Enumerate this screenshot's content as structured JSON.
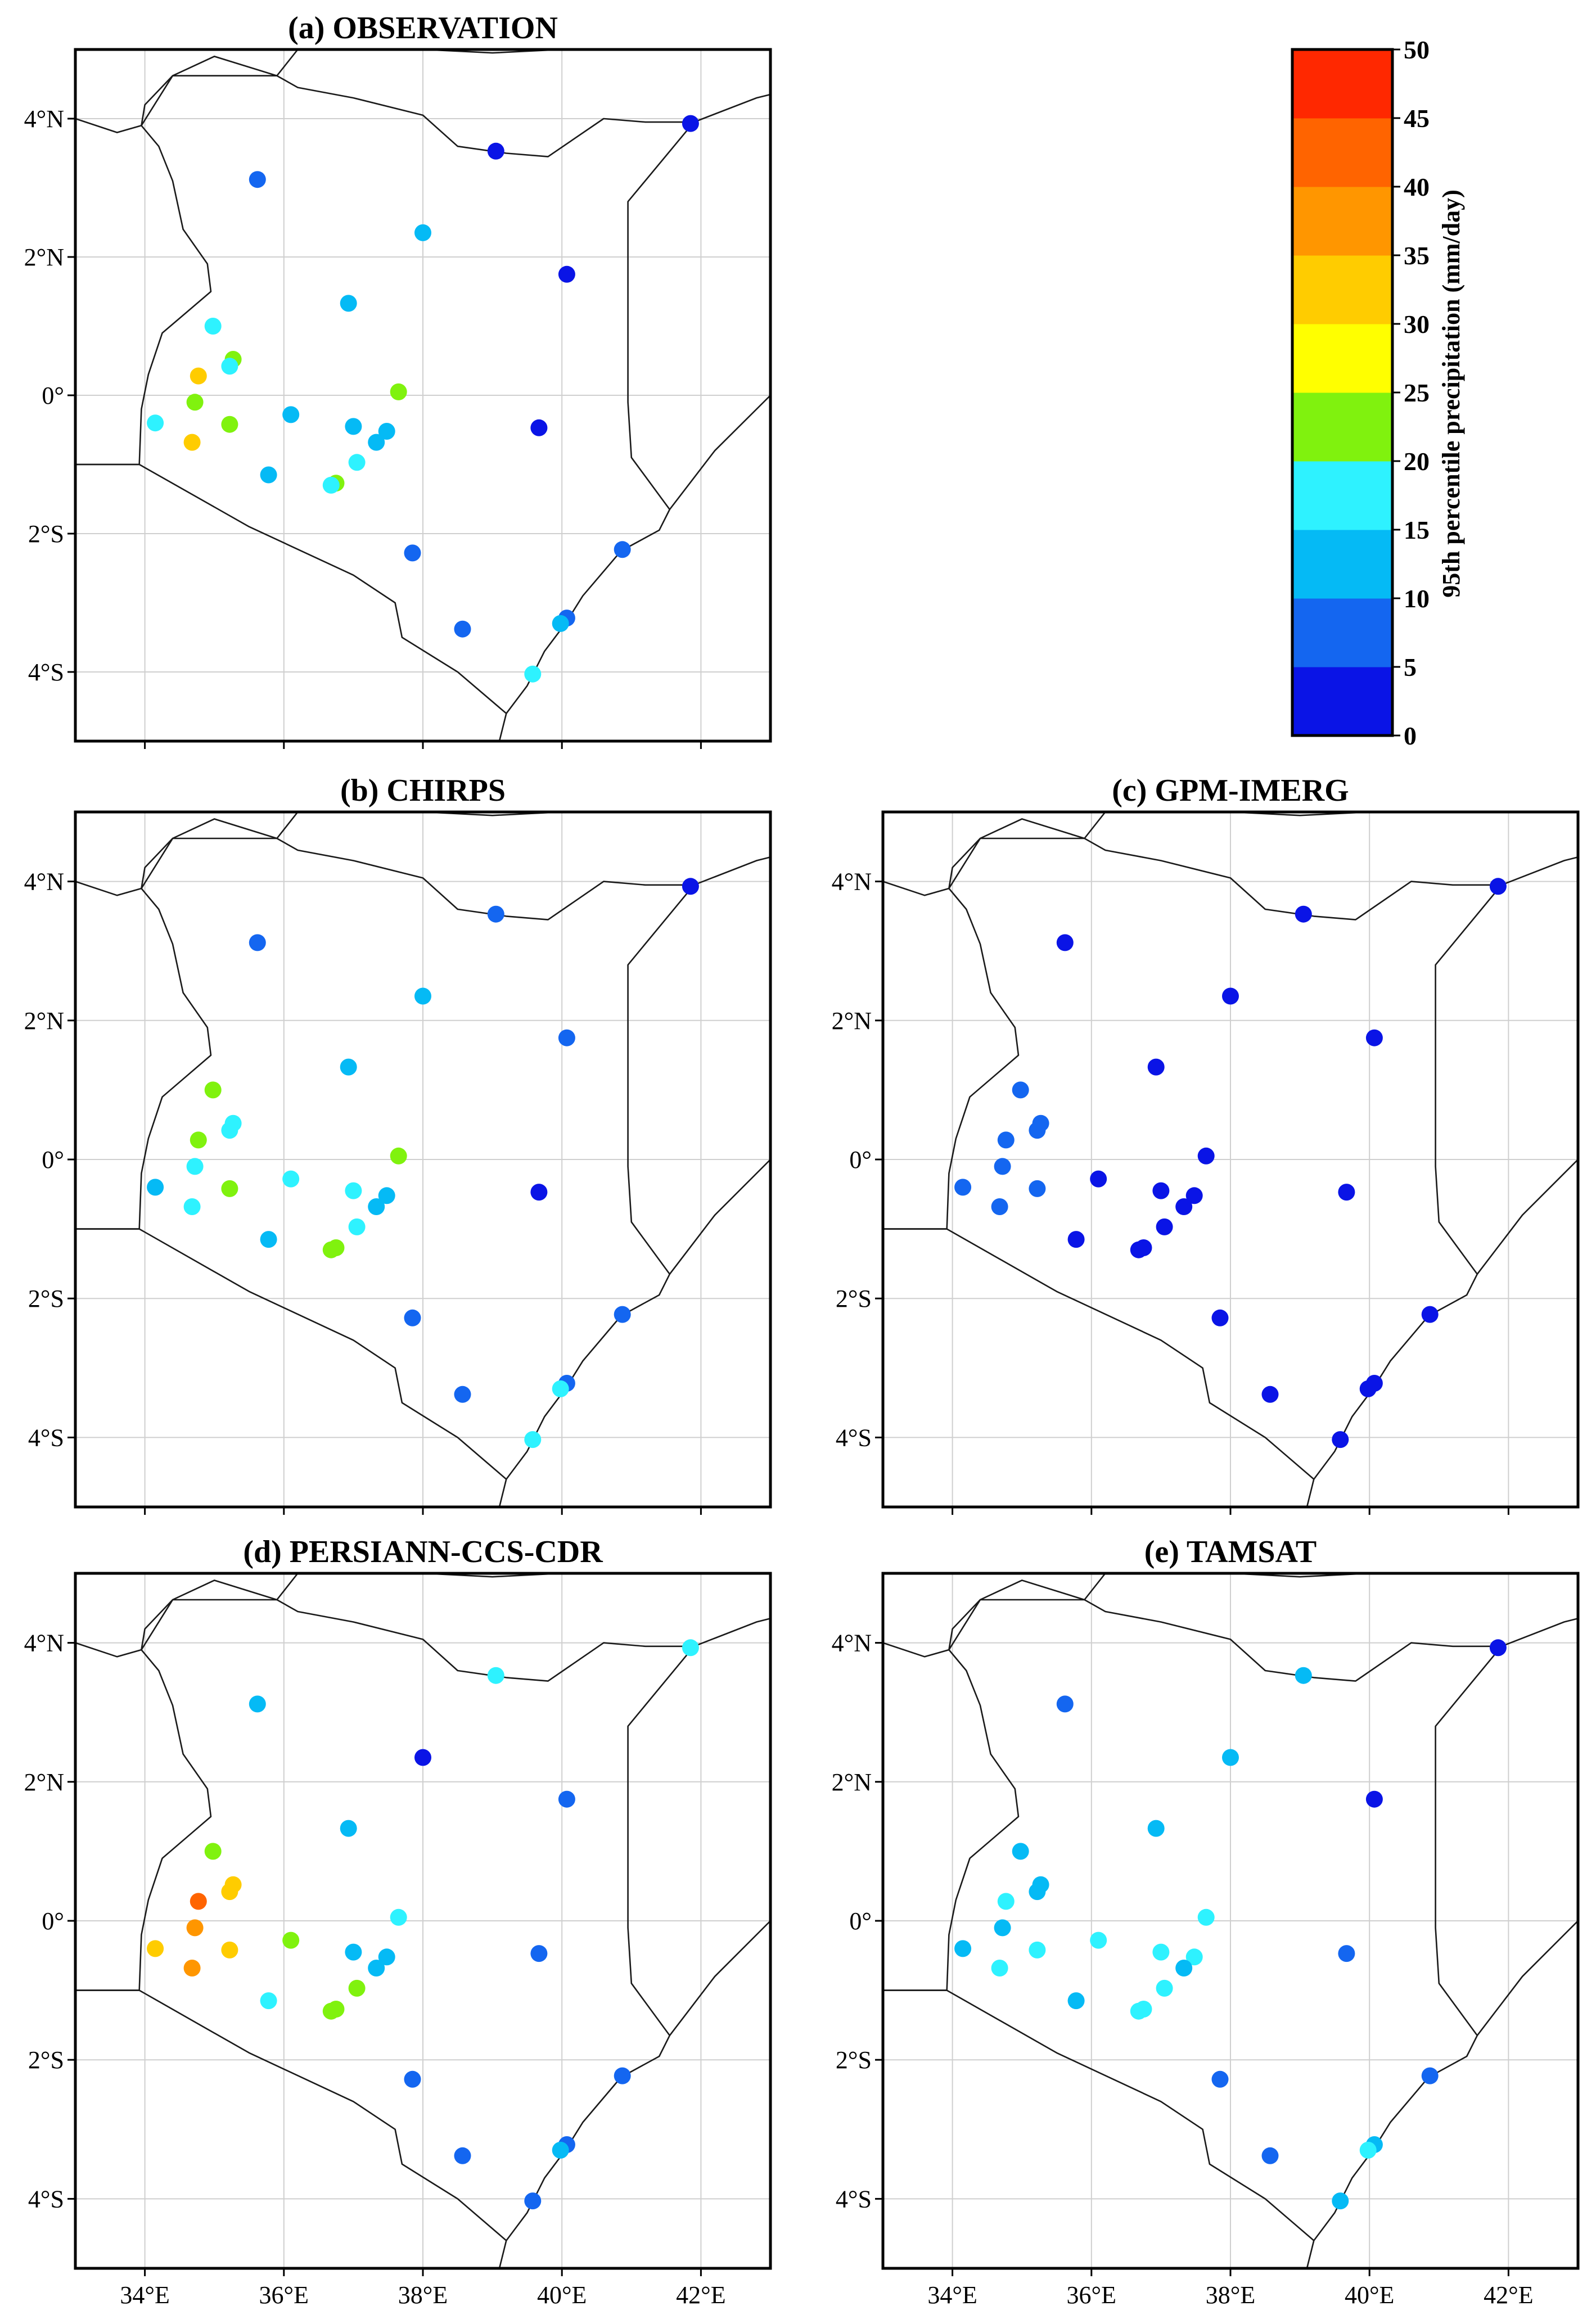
{
  "chart_data": {
    "type": "scatter",
    "description_label": "Station 95th percentile precipitation maps over Kenya",
    "lon_range": [
      33,
      43
    ],
    "lat_range": [
      -5,
      5
    ],
    "x_ticks": [
      {
        "value": 34,
        "label": "34°E"
      },
      {
        "value": 36,
        "label": "36°E"
      },
      {
        "value": 38,
        "label": "38°E"
      },
      {
        "value": 40,
        "label": "40°E"
      },
      {
        "value": 42,
        "label": "42°E"
      }
    ],
    "y_ticks": [
      {
        "value": 4,
        "label": "4°N"
      },
      {
        "value": 2,
        "label": "2°N"
      },
      {
        "value": 0,
        "label": "0°"
      },
      {
        "value": -2,
        "label": "2°S"
      },
      {
        "value": -4,
        "label": "4°S"
      }
    ],
    "colorbar": {
      "title": "95th percentile precipitation (mm/day)",
      "bounds": [
        0,
        5,
        10,
        15,
        20,
        25,
        30,
        35,
        40,
        45,
        50
      ],
      "labels": [
        "0",
        "5",
        "10",
        "15",
        "20",
        "25",
        "30",
        "35",
        "40",
        "45",
        "50"
      ],
      "colors": [
        "#0a14e6",
        "#1466f0",
        "#05baf5",
        "#2ef2ff",
        "#80f20e",
        "#ffff00",
        "#ffcc00",
        "#ff9600",
        "#ff6400",
        "#ff2800"
      ]
    },
    "stations": [
      {
        "lon": 35.62,
        "lat": 3.12
      },
      {
        "lon": 39.05,
        "lat": 3.53
      },
      {
        "lon": 41.85,
        "lat": 3.93
      },
      {
        "lon": 38.0,
        "lat": 2.35
      },
      {
        "lon": 40.07,
        "lat": 1.75
      },
      {
        "lon": 36.93,
        "lat": 1.33
      },
      {
        "lon": 34.98,
        "lat": 1.0
      },
      {
        "lon": 35.27,
        "lat": 0.52
      },
      {
        "lon": 35.22,
        "lat": 0.42
      },
      {
        "lon": 34.77,
        "lat": 0.28
      },
      {
        "lon": 34.72,
        "lat": -0.1
      },
      {
        "lon": 34.15,
        "lat": -0.4
      },
      {
        "lon": 34.68,
        "lat": -0.68
      },
      {
        "lon": 35.22,
        "lat": -0.42
      },
      {
        "lon": 36.1,
        "lat": -0.28
      },
      {
        "lon": 37.65,
        "lat": 0.05
      },
      {
        "lon": 37.0,
        "lat": -0.45
      },
      {
        "lon": 37.48,
        "lat": -0.52
      },
      {
        "lon": 37.33,
        "lat": -0.68
      },
      {
        "lon": 37.05,
        "lat": -0.97
      },
      {
        "lon": 35.78,
        "lat": -1.15
      },
      {
        "lon": 36.75,
        "lat": -1.27
      },
      {
        "lon": 36.68,
        "lat": -1.3
      },
      {
        "lon": 39.67,
        "lat": -0.47
      },
      {
        "lon": 37.85,
        "lat": -2.28
      },
      {
        "lon": 40.87,
        "lat": -2.23
      },
      {
        "lon": 38.57,
        "lat": -3.38
      },
      {
        "lon": 40.07,
        "lat": -3.22
      },
      {
        "lon": 39.98,
        "lat": -3.3
      },
      {
        "lon": 39.58,
        "lat": -4.03
      }
    ],
    "panels": [
      {
        "id": "a",
        "title": "(a) OBSERVATION",
        "values": [
          6,
          3,
          3,
          13,
          4,
          11,
          18,
          23,
          16,
          30,
          23,
          16,
          30,
          23,
          12,
          23,
          11,
          13,
          14,
          16,
          11,
          23,
          17,
          4,
          7,
          9,
          7,
          9,
          13,
          17
        ]
      },
      {
        "id": "b",
        "title": "(b) CHIRPS",
        "values": [
          6,
          7,
          4,
          13,
          9,
          11,
          23,
          15,
          16,
          23,
          16,
          11,
          17,
          23,
          17,
          23,
          16,
          14,
          14,
          16,
          11,
          23,
          23,
          4,
          7,
          7,
          7,
          9,
          17,
          17
        ]
      },
      {
        "id": "c",
        "title": "(c) GPM-IMERG",
        "values": [
          4,
          4,
          4,
          4,
          4,
          4,
          6,
          7,
          7,
          7,
          7,
          7,
          6,
          6,
          4,
          4,
          4,
          4,
          4,
          4,
          4,
          4,
          4,
          4,
          4,
          4,
          4,
          4,
          4,
          4
        ]
      },
      {
        "id": "d",
        "title": "(d) PERSIANN-CCS-CDR",
        "values": [
          12,
          17,
          16,
          4,
          7,
          11,
          23,
          32,
          30,
          41,
          38,
          33,
          38,
          33,
          23,
          16,
          13,
          13,
          14,
          23,
          17,
          23,
          23,
          6,
          9,
          9,
          9,
          9,
          12,
          9
        ]
      },
      {
        "id": "e",
        "title": "(e) TAMSAT",
        "values": [
          6,
          13,
          4,
          13,
          4,
          13,
          12,
          12,
          12,
          17,
          12,
          11,
          17,
          16,
          16,
          16,
          16,
          16,
          12,
          16,
          12,
          17,
          16,
          9,
          9,
          9,
          9,
          11,
          16,
          11
        ]
      }
    ]
  }
}
